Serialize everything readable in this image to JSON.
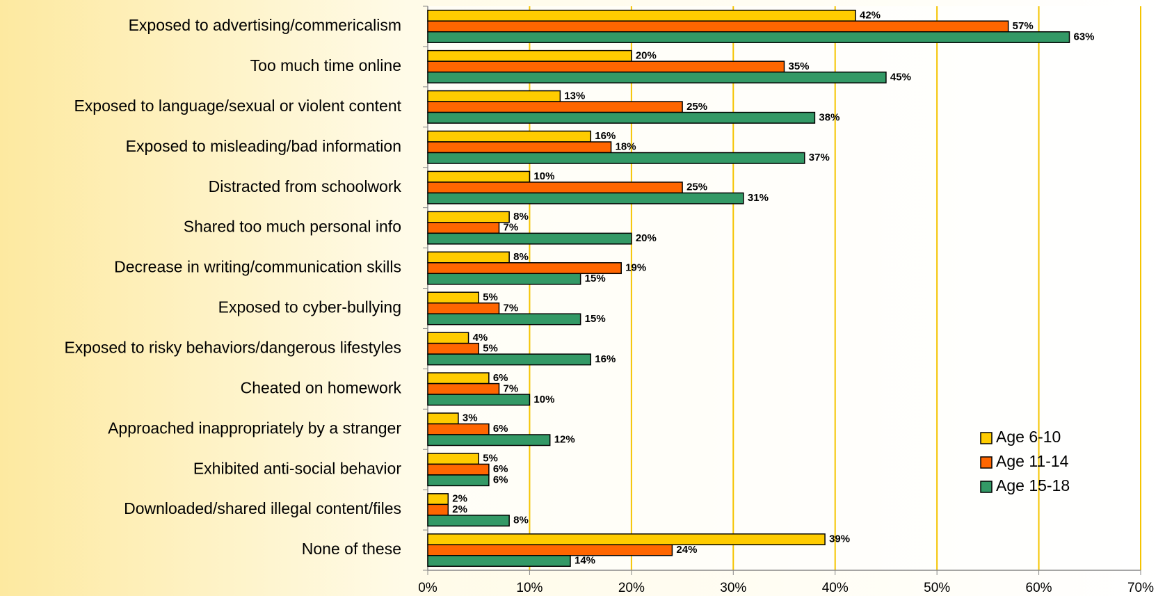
{
  "chart_data": {
    "type": "bar",
    "orientation": "horizontal",
    "categories": [
      "Exposed to advertising/commericalism",
      "Too much time online",
      "Exposed to language/sexual or violent content",
      "Exposed to misleading/bad information",
      "Distracted from schoolwork",
      "Shared too much personal info",
      "Decrease in writing/communication skills",
      "Exposed to cyber-bullying",
      "Exposed to risky behaviors/dangerous lifestyles",
      "Cheated on homework",
      "Approached inappropriately by a stranger",
      "Exhibited anti-social behavior",
      "Downloaded/shared illegal content/files",
      "None of these"
    ],
    "series": [
      {
        "name": "Age 6-10",
        "color": "#ffcc00",
        "values": [
          42,
          20,
          13,
          16,
          10,
          8,
          8,
          5,
          4,
          6,
          3,
          5,
          2,
          39
        ],
        "value_labels": [
          "42%",
          "20%",
          "13%",
          "16%",
          "10%",
          "8%",
          "8%",
          "5%",
          "4%",
          "6%",
          "3%",
          "5%",
          "2%",
          "39%"
        ]
      },
      {
        "name": "Age 11-14",
        "color": "#ff6600",
        "values": [
          57,
          35,
          25,
          18,
          25,
          7,
          19,
          7,
          5,
          7,
          6,
          6,
          2,
          24
        ],
        "value_labels": [
          "57%",
          "35%",
          "25%",
          "18%",
          "25%",
          "7%",
          "19%",
          "7%",
          "5%",
          "7%",
          "6%",
          "6%",
          "2%",
          "24%"
        ]
      },
      {
        "name": "Age 15-18",
        "color": "#339966",
        "values": [
          63,
          45,
          38,
          37,
          31,
          20,
          15,
          15,
          16,
          10,
          12,
          6,
          8,
          14
        ],
        "value_labels": [
          "63%",
          "45%",
          "38%",
          "37%",
          "31%",
          "20%",
          "15%",
          "15%",
          "16%",
          "10%",
          "12%",
          "6%",
          "8%",
          "14%"
        ]
      }
    ],
    "xlim": [
      0,
      70
    ],
    "xticks": [
      {
        "value": 0,
        "label": "0%"
      },
      {
        "value": 10,
        "label": "10%"
      },
      {
        "value": 20,
        "label": "20%"
      },
      {
        "value": 30,
        "label": "30%"
      },
      {
        "value": 40,
        "label": "40%"
      },
      {
        "value": 50,
        "label": "50%"
      },
      {
        "value": 60,
        "label": "60%"
      },
      {
        "value": 70,
        "label": "70%"
      }
    ],
    "grid": true,
    "legend": "lower right"
  }
}
